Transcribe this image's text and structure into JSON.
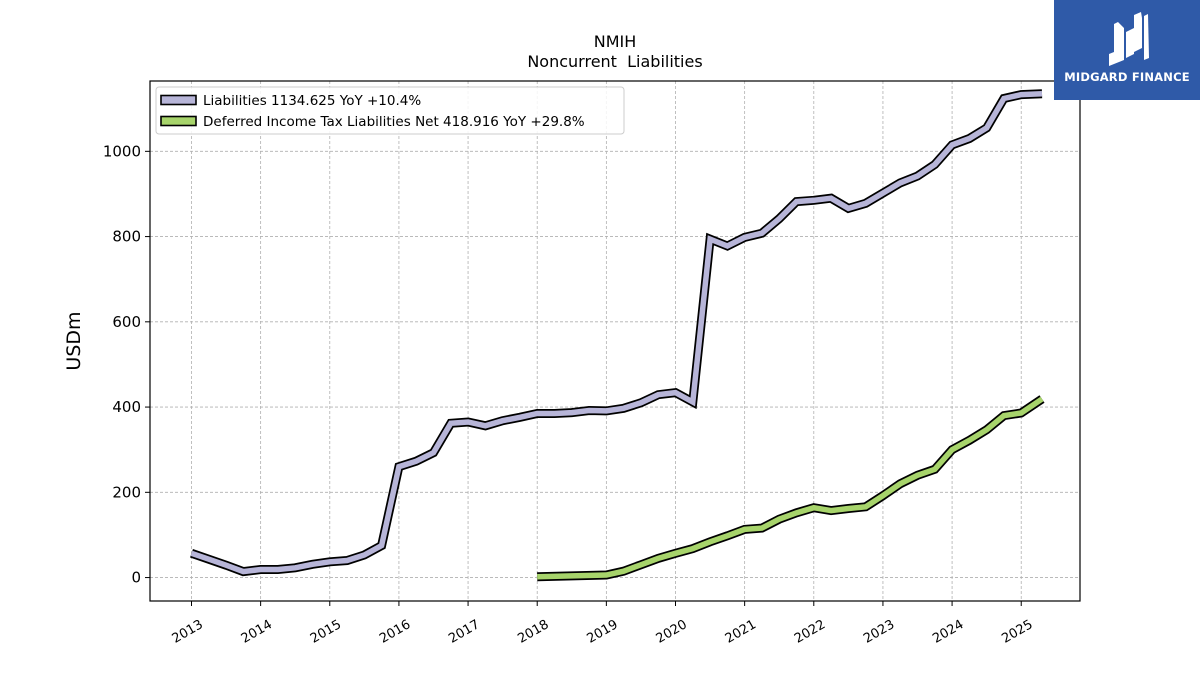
{
  "chart_data": {
    "type": "line",
    "title": "NMIH",
    "subtitle": "Noncurrent  Liabilities",
    "ylabel": "USDm",
    "xlabel": "",
    "xlim": [
      2012.4,
      2025.85
    ],
    "ylim": [
      -55,
      1165
    ],
    "x_ticks": [
      2013,
      2014,
      2015,
      2016,
      2017,
      2018,
      2019,
      2020,
      2021,
      2022,
      2023,
      2024,
      2025
    ],
    "y_ticks": [
      0,
      200,
      400,
      600,
      800,
      1000
    ],
    "grid": true,
    "legend_position": "top-left",
    "series": [
      {
        "name": "Liabilities  1134.625 YoY +10.4%",
        "color": "#b7b5d8",
        "x": [
          2013.0,
          2013.25,
          2013.5,
          2013.75,
          2014.0,
          2014.25,
          2014.5,
          2014.75,
          2015.0,
          2015.25,
          2015.5,
          2015.75,
          2016.0,
          2016.25,
          2016.5,
          2016.75,
          2017.0,
          2017.25,
          2017.5,
          2017.75,
          2018.0,
          2018.25,
          2018.5,
          2018.75,
          2019.0,
          2019.25,
          2019.5,
          2019.75,
          2020.0,
          2020.25,
          2020.5,
          2020.75,
          2021.0,
          2021.25,
          2021.5,
          2021.75,
          2022.0,
          2022.25,
          2022.5,
          2022.75,
          2023.0,
          2023.25,
          2023.5,
          2023.75,
          2024.0,
          2024.25,
          2024.5,
          2024.75,
          2025.0,
          2025.3
        ],
        "values": [
          57,
          43,
          29,
          14,
          19,
          19,
          23,
          31,
          37,
          40,
          53,
          75,
          260,
          273,
          293,
          362,
          365,
          356,
          368,
          376,
          385,
          385,
          387,
          392,
          391,
          397,
          410,
          429,
          434,
          412,
          794,
          778,
          798,
          808,
          842,
          882,
          885,
          890,
          866,
          878,
          902,
          926,
          942,
          969,
          1015,
          1030,
          1055,
          1124,
          1133,
          1135
        ]
      },
      {
        "name": "Deferred Income Tax Liabilities Net  418.916 YoY +29.8%",
        "color": "#a7d46b",
        "x": [
          2018.0,
          2019.0,
          2019.25,
          2019.5,
          2019.75,
          2020.0,
          2020.25,
          2020.5,
          2020.75,
          2021.0,
          2021.25,
          2021.5,
          2021.75,
          2022.0,
          2022.25,
          2022.5,
          2022.75,
          2023.0,
          2023.25,
          2023.5,
          2023.75,
          2024.0,
          2024.25,
          2024.5,
          2024.75,
          2025.0,
          2025.3
        ],
        "values": [
          2,
          6,
          15,
          30,
          45,
          57,
          68,
          84,
          98,
          113,
          116,
          137,
          152,
          164,
          157,
          162,
          166,
          192,
          220,
          240,
          254,
          300,
          322,
          347,
          380,
          386,
          419
        ]
      }
    ]
  },
  "logo": {
    "text": "MIDGARD FINANCE",
    "color": "#2f5aa8"
  }
}
